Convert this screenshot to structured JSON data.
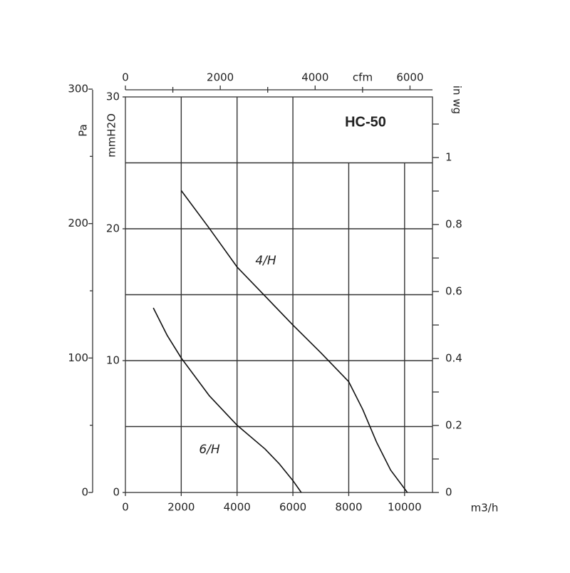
{
  "chart_data": {
    "type": "line",
    "title": "HC-50",
    "x_label": "m3/h",
    "y_label": "mmH2O",
    "xlim": [
      0,
      11000
    ],
    "xticks": [
      0,
      2000,
      4000,
      6000,
      8000,
      10000
    ],
    "ylim": [
      0,
      30
    ],
    "yticks": [
      0,
      10,
      20,
      30
    ],
    "grid_y": [
      5,
      10,
      15,
      20,
      25
    ],
    "grid_x": [
      2000,
      4000,
      6000,
      8000,
      10000
    ],
    "pa_axis": {
      "label": "Pa",
      "lim": [
        0,
        294.2
      ],
      "ticks": [
        0,
        100,
        200,
        300
      ],
      "minor_ticks": [
        50,
        150,
        250
      ]
    },
    "y2_label": "in wg",
    "y2lim": [
      0,
      1.181
    ],
    "y2ticks": [
      0,
      0.2,
      0.4,
      0.6,
      0.8,
      1
    ],
    "y2_minor_ticks": [
      0.1,
      0.3,
      0.5,
      0.7,
      0.9,
      1.1
    ],
    "x2_axis": {
      "label": "cfm",
      "lim": [
        0,
        6474
      ],
      "ticks": [
        0,
        2000,
        4000,
        6000
      ],
      "minor_ticks": [
        1000,
        3000,
        5000
      ]
    },
    "series": [
      {
        "name": "4/H",
        "color": "#111111",
        "x": [
          2000,
          3000,
          4000,
          5000,
          6000,
          7000,
          8000,
          8500,
          9000,
          9500,
          10100
        ],
        "values": [
          22.9,
          20.05,
          17.1,
          14.9,
          12.7,
          10.6,
          8.4,
          6.3,
          3.8,
          1.7,
          0
        ]
      },
      {
        "name": "6/H",
        "color": "#111111",
        "x": [
          1000,
          1500,
          2000,
          3000,
          4000,
          5000,
          5500,
          6000,
          6300
        ],
        "values": [
          14.0,
          11.9,
          10.2,
          7.35,
          5.1,
          3.3,
          2.2,
          0.9,
          0
        ]
      }
    ]
  }
}
